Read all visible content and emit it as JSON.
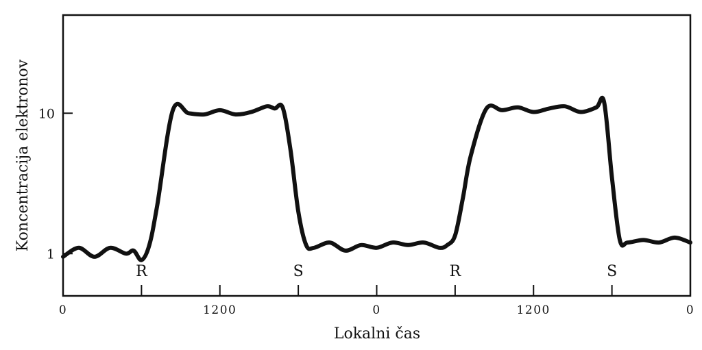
{
  "chart_data": {
    "type": "line",
    "xlabel": "Lokalni čas",
    "ylabel": "Koncentracija elektronov",
    "y_scale": "log",
    "ylim": [
      0.5,
      50
    ],
    "yticks": [
      {
        "label": "10",
        "value": 10
      },
      {
        "label": "1",
        "value": 1
      }
    ],
    "x_tick_labels": [
      "0",
      "1200",
      "0",
      "1200",
      "0"
    ],
    "markers": [
      {
        "label": "R",
        "x": 0.5
      },
      {
        "label": "S",
        "x": 1.5
      },
      {
        "label": "R",
        "x": 2.5
      },
      {
        "label": "S",
        "x": 3.5
      }
    ],
    "xlim": [
      0,
      4
    ],
    "grid": false,
    "legend": "none",
    "line_color": "#111111",
    "series": [
      {
        "x": [
          0.0,
          0.1,
          0.2,
          0.3,
          0.4,
          0.45,
          0.5,
          0.55,
          0.6,
          0.7,
          0.8,
          0.9,
          1.0,
          1.1,
          1.2,
          1.3,
          1.35,
          1.4,
          1.45,
          1.5,
          1.55,
          1.6,
          1.7,
          1.8,
          1.9,
          2.0,
          2.1,
          2.2,
          2.3,
          2.4,
          2.45,
          2.5,
          2.55,
          2.6,
          2.7,
          2.8,
          2.9,
          3.0,
          3.1,
          3.2,
          3.3,
          3.4,
          3.45,
          3.5,
          3.55,
          3.6,
          3.7,
          3.8,
          3.9,
          4.0
        ],
        "values": [
          0.95,
          1.1,
          0.95,
          1.1,
          1.0,
          1.05,
          0.9,
          1.15,
          2.2,
          10.5,
          10.0,
          9.8,
          10.5,
          9.8,
          10.2,
          11.2,
          10.8,
          11.0,
          5.5,
          2.0,
          1.15,
          1.1,
          1.2,
          1.05,
          1.15,
          1.1,
          1.2,
          1.15,
          1.2,
          1.1,
          1.15,
          1.35,
          2.5,
          5.0,
          10.8,
          10.5,
          11.0,
          10.2,
          10.8,
          11.2,
          10.2,
          11.0,
          12.0,
          3.5,
          1.25,
          1.2,
          1.25,
          1.2,
          1.3,
          1.2
        ]
      }
    ]
  }
}
